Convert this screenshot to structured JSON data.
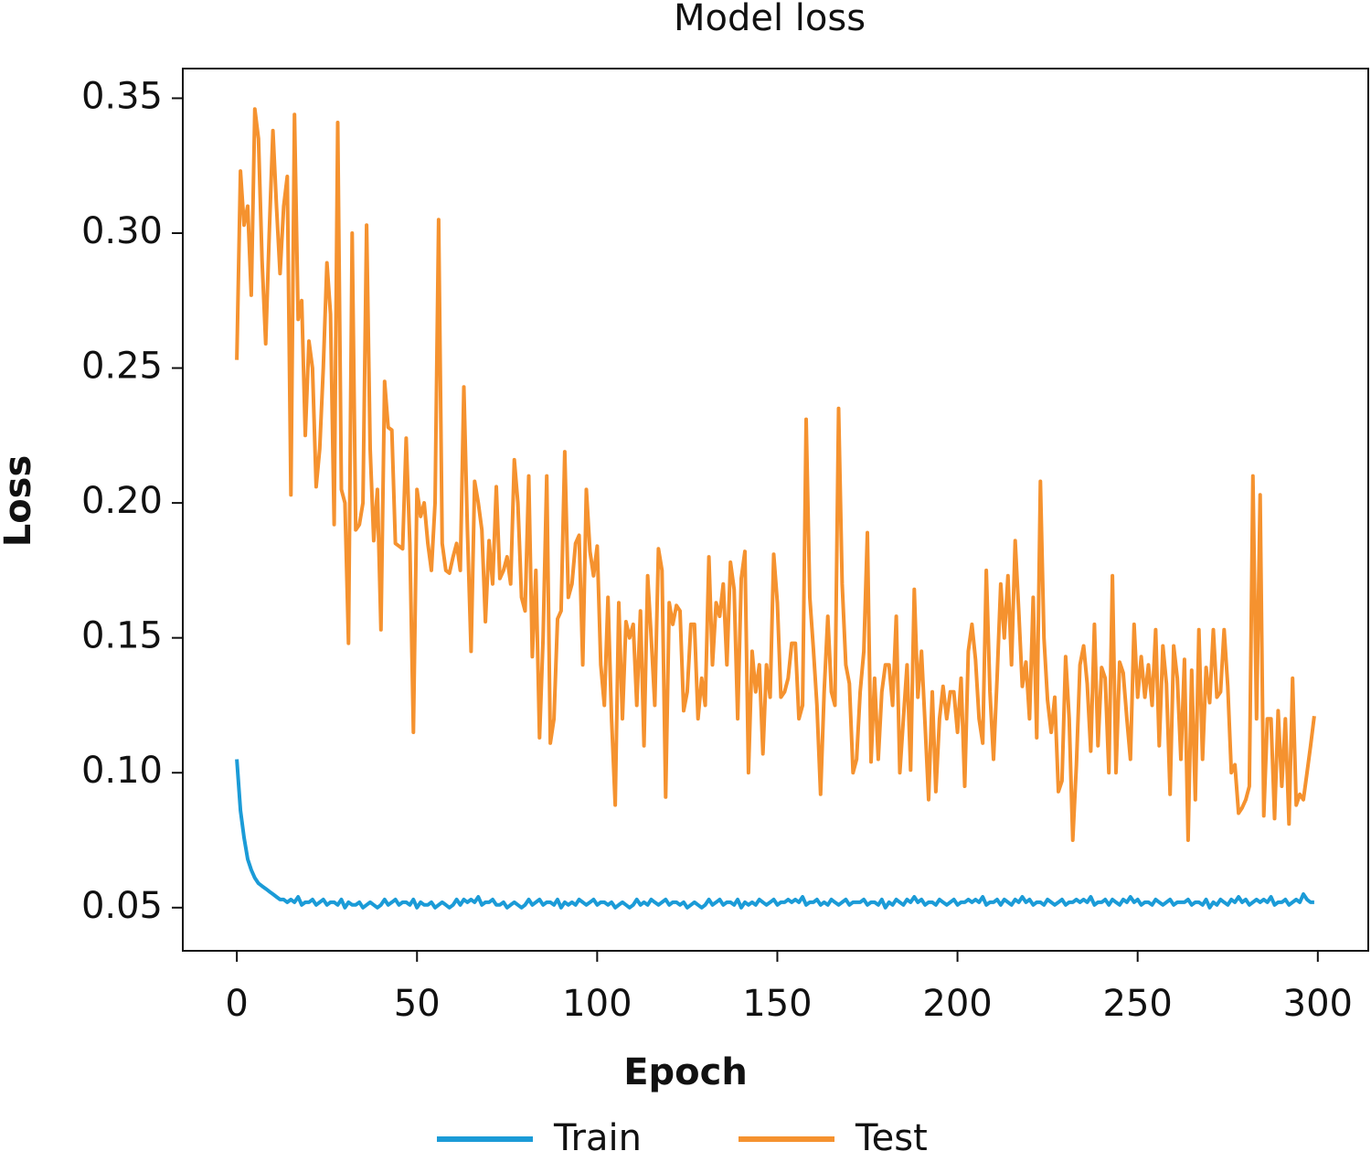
{
  "chart_data": {
    "type": "line",
    "title": "Model loss",
    "xlabel": "Epoch",
    "ylabel": "Loss",
    "xlim": [
      -15,
      314
    ],
    "ylim": [
      0.034,
      0.361
    ],
    "xticks": [
      0,
      50,
      100,
      150,
      200,
      250,
      300
    ],
    "yticks": [
      0.05,
      {
        "value": 0.1,
        "label": "0.10"
      },
      0.15,
      {
        "value": 0.2,
        "label": "0.20"
      },
      0.25,
      {
        "value": 0.3,
        "label": "0.30"
      },
      0.35
    ],
    "legend": "below",
    "x": [
      0,
      1,
      2,
      3,
      4,
      5,
      6,
      7,
      8,
      9,
      10,
      11,
      12,
      13,
      14,
      15,
      16,
      17,
      18,
      19,
      20,
      21,
      22,
      23,
      24,
      25,
      26,
      27,
      28,
      29,
      30,
      31,
      32,
      33,
      34,
      35,
      36,
      37,
      38,
      39,
      40,
      41,
      42,
      43,
      44,
      45,
      46,
      47,
      48,
      49,
      50,
      51,
      52,
      53,
      54,
      55,
      56,
      57,
      58,
      59,
      60,
      61,
      62,
      63,
      64,
      65,
      66,
      67,
      68,
      69,
      70,
      71,
      72,
      73,
      74,
      75,
      76,
      77,
      78,
      79,
      80,
      81,
      82,
      83,
      84,
      85,
      86,
      87,
      88,
      89,
      90,
      91,
      92,
      93,
      94,
      95,
      96,
      97,
      98,
      99,
      100,
      101,
      102,
      103,
      104,
      105,
      106,
      107,
      108,
      109,
      110,
      111,
      112,
      113,
      114,
      115,
      116,
      117,
      118,
      119,
      120,
      121,
      122,
      123,
      124,
      125,
      126,
      127,
      128,
      129,
      130,
      131,
      132,
      133,
      134,
      135,
      136,
      137,
      138,
      139,
      140,
      141,
      142,
      143,
      144,
      145,
      146,
      147,
      148,
      149,
      150,
      151,
      152,
      153,
      154,
      155,
      156,
      157,
      158,
      159,
      160,
      161,
      162,
      163,
      164,
      165,
      166,
      167,
      168,
      169,
      170,
      171,
      172,
      173,
      174,
      175,
      176,
      177,
      178,
      179,
      180,
      181,
      182,
      183,
      184,
      185,
      186,
      187,
      188,
      189,
      190,
      191,
      192,
      193,
      194,
      195,
      196,
      197,
      198,
      199,
      200,
      201,
      202,
      203,
      204,
      205,
      206,
      207,
      208,
      209,
      210,
      211,
      212,
      213,
      214,
      215,
      216,
      217,
      218,
      219,
      220,
      221,
      222,
      223,
      224,
      225,
      226,
      227,
      228,
      229,
      230,
      231,
      232,
      233,
      234,
      235,
      236,
      237,
      238,
      239,
      240,
      241,
      242,
      243,
      244,
      245,
      246,
      247,
      248,
      249,
      250,
      251,
      252,
      253,
      254,
      255,
      256,
      257,
      258,
      259,
      260,
      261,
      262,
      263,
      264,
      265,
      266,
      267,
      268,
      269,
      270,
      271,
      272,
      273,
      274,
      275,
      276,
      277,
      278,
      279,
      280,
      281,
      282,
      283,
      284,
      285,
      286,
      287,
      288,
      289,
      290,
      291,
      292,
      293,
      294,
      295,
      296,
      297,
      298,
      299
    ],
    "series": [
      {
        "name": "Train",
        "color": "#1b9bd7",
        "values": [
          0.105,
          0.086,
          0.076,
          0.068,
          0.064,
          0.061,
          0.059,
          0.058,
          0.057,
          0.056,
          0.055,
          0.054,
          0.053,
          0.053,
          0.052,
          0.053,
          0.052,
          0.054,
          0.051,
          0.052,
          0.052,
          0.053,
          0.051,
          0.052,
          0.053,
          0.051,
          0.052,
          0.052,
          0.051,
          0.053,
          0.05,
          0.052,
          0.051,
          0.051,
          0.052,
          0.05,
          0.051,
          0.052,
          0.051,
          0.05,
          0.051,
          0.053,
          0.051,
          0.052,
          0.053,
          0.051,
          0.052,
          0.052,
          0.051,
          0.053,
          0.05,
          0.052,
          0.051,
          0.051,
          0.052,
          0.05,
          0.051,
          0.052,
          0.051,
          0.05,
          0.051,
          0.053,
          0.051,
          0.053,
          0.052,
          0.053,
          0.052,
          0.054,
          0.051,
          0.052,
          0.052,
          0.053,
          0.051,
          0.051,
          0.052,
          0.05,
          0.051,
          0.052,
          0.051,
          0.05,
          0.051,
          0.053,
          0.051,
          0.052,
          0.053,
          0.051,
          0.052,
          0.052,
          0.051,
          0.053,
          0.05,
          0.052,
          0.051,
          0.052,
          0.051,
          0.053,
          0.052,
          0.051,
          0.052,
          0.053,
          0.051,
          0.052,
          0.052,
          0.051,
          0.052,
          0.05,
          0.051,
          0.052,
          0.051,
          0.05,
          0.051,
          0.053,
          0.051,
          0.052,
          0.051,
          0.053,
          0.052,
          0.051,
          0.052,
          0.053,
          0.051,
          0.052,
          0.052,
          0.051,
          0.052,
          0.05,
          0.051,
          0.052,
          0.051,
          0.05,
          0.051,
          0.053,
          0.051,
          0.052,
          0.053,
          0.051,
          0.052,
          0.052,
          0.051,
          0.053,
          0.05,
          0.052,
          0.051,
          0.052,
          0.051,
          0.053,
          0.052,
          0.051,
          0.052,
          0.053,
          0.051,
          0.052,
          0.052,
          0.053,
          0.052,
          0.053,
          0.052,
          0.054,
          0.051,
          0.052,
          0.052,
          0.053,
          0.051,
          0.052,
          0.051,
          0.053,
          0.052,
          0.051,
          0.052,
          0.053,
          0.051,
          0.052,
          0.052,
          0.052,
          0.053,
          0.051,
          0.052,
          0.052,
          0.051,
          0.053,
          0.05,
          0.052,
          0.051,
          0.053,
          0.052,
          0.051,
          0.053,
          0.052,
          0.054,
          0.052,
          0.053,
          0.051,
          0.052,
          0.052,
          0.051,
          0.053,
          0.052,
          0.051,
          0.052,
          0.053,
          0.051,
          0.052,
          0.052,
          0.053,
          0.052,
          0.053,
          0.052,
          0.054,
          0.051,
          0.052,
          0.052,
          0.053,
          0.051,
          0.053,
          0.052,
          0.051,
          0.053,
          0.052,
          0.054,
          0.052,
          0.053,
          0.051,
          0.052,
          0.052,
          0.051,
          0.053,
          0.052,
          0.051,
          0.052,
          0.053,
          0.051,
          0.052,
          0.052,
          0.053,
          0.052,
          0.053,
          0.052,
          0.054,
          0.051,
          0.052,
          0.052,
          0.053,
          0.051,
          0.053,
          0.052,
          0.051,
          0.053,
          0.052,
          0.054,
          0.052,
          0.053,
          0.051,
          0.052,
          0.052,
          0.051,
          0.053,
          0.052,
          0.051,
          0.052,
          0.053,
          0.051,
          0.052,
          0.052,
          0.052,
          0.053,
          0.051,
          0.052,
          0.052,
          0.051,
          0.053,
          0.05,
          0.052,
          0.051,
          0.053,
          0.052,
          0.051,
          0.053,
          0.052,
          0.054,
          0.052,
          0.053,
          0.051,
          0.052,
          0.053,
          0.052,
          0.053,
          0.052,
          0.054,
          0.051,
          0.052,
          0.052,
          0.053,
          0.051,
          0.052,
          0.053,
          0.052,
          0.055,
          0.053,
          0.052,
          0.052
        ]
      },
      {
        "name": "Test",
        "color": "#f5922f",
        "values": [
          0.253,
          0.323,
          0.303,
          0.31,
          0.277,
          0.346,
          0.335,
          0.29,
          0.259,
          0.3,
          0.338,
          0.31,
          0.285,
          0.31,
          0.321,
          0.203,
          0.344,
          0.268,
          0.275,
          0.225,
          0.26,
          0.25,
          0.206,
          0.22,
          0.25,
          0.289,
          0.27,
          0.192,
          0.341,
          0.205,
          0.2,
          0.148,
          0.3,
          0.19,
          0.192,
          0.2,
          0.303,
          0.22,
          0.186,
          0.205,
          0.153,
          0.245,
          0.228,
          0.227,
          0.185,
          0.184,
          0.183,
          0.224,
          0.185,
          0.115,
          0.205,
          0.195,
          0.2,
          0.185,
          0.175,
          0.2,
          0.305,
          0.185,
          0.175,
          0.174,
          0.18,
          0.185,
          0.175,
          0.243,
          0.19,
          0.145,
          0.208,
          0.2,
          0.19,
          0.156,
          0.186,
          0.17,
          0.206,
          0.172,
          0.175,
          0.18,
          0.17,
          0.216,
          0.2,
          0.165,
          0.16,
          0.21,
          0.143,
          0.175,
          0.113,
          0.15,
          0.21,
          0.111,
          0.12,
          0.157,
          0.16,
          0.219,
          0.165,
          0.17,
          0.185,
          0.188,
          0.14,
          0.205,
          0.182,
          0.173,
          0.184,
          0.14,
          0.125,
          0.165,
          0.12,
          0.088,
          0.163,
          0.12,
          0.156,
          0.15,
          0.155,
          0.125,
          0.16,
          0.11,
          0.173,
          0.15,
          0.125,
          0.183,
          0.175,
          0.091,
          0.163,
          0.155,
          0.162,
          0.16,
          0.123,
          0.13,
          0.155,
          0.155,
          0.12,
          0.135,
          0.125,
          0.18,
          0.14,
          0.163,
          0.158,
          0.17,
          0.14,
          0.178,
          0.168,
          0.12,
          0.172,
          0.182,
          0.1,
          0.145,
          0.13,
          0.14,
          0.107,
          0.14,
          0.128,
          0.181,
          0.163,
          0.128,
          0.13,
          0.135,
          0.148,
          0.148,
          0.12,
          0.125,
          0.231,
          0.165,
          0.146,
          0.125,
          0.092,
          0.13,
          0.158,
          0.13,
          0.125,
          0.235,
          0.17,
          0.14,
          0.133,
          0.1,
          0.105,
          0.13,
          0.145,
          0.189,
          0.104,
          0.135,
          0.105,
          0.13,
          0.14,
          0.14,
          0.125,
          0.158,
          0.1,
          0.12,
          0.14,
          0.101,
          0.168,
          0.128,
          0.145,
          0.118,
          0.09,
          0.13,
          0.093,
          0.12,
          0.132,
          0.12,
          0.13,
          0.13,
          0.115,
          0.135,
          0.095,
          0.145,
          0.155,
          0.142,
          0.12,
          0.111,
          0.175,
          0.13,
          0.105,
          0.135,
          0.17,
          0.15,
          0.173,
          0.14,
          0.186,
          0.16,
          0.132,
          0.141,
          0.12,
          0.165,
          0.113,
          0.208,
          0.15,
          0.127,
          0.115,
          0.128,
          0.093,
          0.097,
          0.143,
          0.12,
          0.075,
          0.103,
          0.14,
          0.147,
          0.133,
          0.108,
          0.155,
          0.11,
          0.139,
          0.135,
          0.1,
          0.173,
          0.1,
          0.141,
          0.137,
          0.12,
          0.105,
          0.155,
          0.128,
          0.143,
          0.128,
          0.14,
          0.125,
          0.153,
          0.11,
          0.147,
          0.133,
          0.092,
          0.147,
          0.135,
          0.105,
          0.142,
          0.075,
          0.138,
          0.09,
          0.153,
          0.105,
          0.139,
          0.126,
          0.153,
          0.128,
          0.13,
          0.153,
          0.132,
          0.1,
          0.103,
          0.085,
          0.087,
          0.09,
          0.095,
          0.21,
          0.12,
          0.203,
          0.084,
          0.12,
          0.12,
          0.083,
          0.123,
          0.095,
          0.12,
          0.081,
          0.135,
          0.088,
          0.092,
          0.09,
          0.1,
          0.11,
          0.121
        ]
      }
    ]
  }
}
